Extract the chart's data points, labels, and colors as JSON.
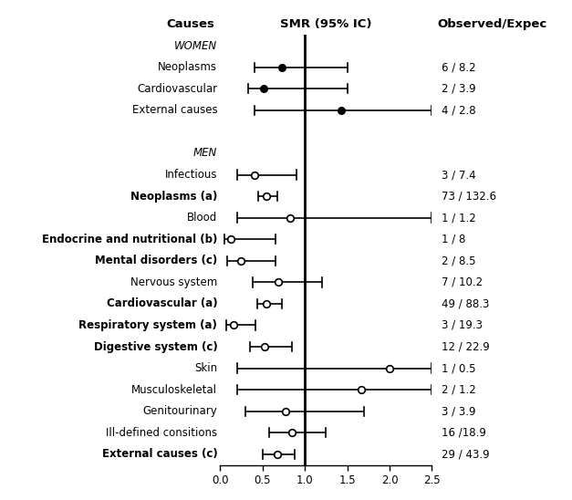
{
  "title_causes": "Causes",
  "title_smr": "SMR (95% IC)",
  "title_obs": "Observed/Expec",
  "xlim": [
    0.0,
    2.5
  ],
  "xticks": [
    0.0,
    0.5,
    1.0,
    1.5,
    2.0,
    2.5
  ],
  "xtick_labels": [
    "0.0",
    "0.5",
    "1.0",
    "1.5",
    "2.0",
    "2.5"
  ],
  "reference_line": 1.0,
  "rows": [
    {
      "label": "WOMEN",
      "italic": true,
      "bold": false,
      "is_header": true,
      "smr": null,
      "ci_lo": null,
      "ci_hi": null,
      "obs_exp": ""
    },
    {
      "label": "Neoplasms",
      "italic": false,
      "bold": false,
      "is_header": false,
      "smr": 0.73,
      "ci_lo": 0.4,
      "ci_hi": 1.5,
      "obs_exp": "6 / 8.2",
      "filled": true
    },
    {
      "label": "Cardiovascular",
      "italic": false,
      "bold": false,
      "is_header": false,
      "smr": 0.51,
      "ci_lo": 0.33,
      "ci_hi": 1.5,
      "obs_exp": "2 / 3.9",
      "filled": true
    },
    {
      "label": "External causes",
      "italic": false,
      "bold": false,
      "is_header": false,
      "smr": 1.43,
      "ci_lo": 0.4,
      "ci_hi": 2.5,
      "obs_exp": "4 / 2.8",
      "filled": true
    },
    {
      "label": "",
      "italic": false,
      "bold": false,
      "is_header": true,
      "smr": null,
      "ci_lo": null,
      "ci_hi": null,
      "obs_exp": ""
    },
    {
      "label": "MEN",
      "italic": true,
      "bold": false,
      "is_header": true,
      "smr": null,
      "ci_lo": null,
      "ci_hi": null,
      "obs_exp": ""
    },
    {
      "label": "Infectious",
      "italic": false,
      "bold": false,
      "is_header": false,
      "smr": 0.41,
      "ci_lo": 0.2,
      "ci_hi": 0.9,
      "obs_exp": "3 / 7.4",
      "filled": false
    },
    {
      "label": "Neoplasms (a)",
      "italic": false,
      "bold": true,
      "is_header": false,
      "smr": 0.55,
      "ci_lo": 0.45,
      "ci_hi": 0.68,
      "obs_exp": "73 / 132.6",
      "filled": false
    },
    {
      "label": "Blood",
      "italic": false,
      "bold": false,
      "is_header": false,
      "smr": 0.83,
      "ci_lo": 0.2,
      "ci_hi": 2.5,
      "obs_exp": "1 / 1.2",
      "filled": false
    },
    {
      "label": "Endocrine and nutritional (b)",
      "italic": false,
      "bold": true,
      "is_header": false,
      "smr": 0.13,
      "ci_lo": 0.05,
      "ci_hi": 0.65,
      "obs_exp": "1 / 8",
      "filled": false
    },
    {
      "label": "Mental disorders (c)",
      "italic": false,
      "bold": true,
      "is_header": false,
      "smr": 0.24,
      "ci_lo": 0.08,
      "ci_hi": 0.65,
      "obs_exp": "2 / 8.5",
      "filled": false
    },
    {
      "label": "Nervous system",
      "italic": false,
      "bold": false,
      "is_header": false,
      "smr": 0.69,
      "ci_lo": 0.38,
      "ci_hi": 1.2,
      "obs_exp": "7 / 10.2",
      "filled": false
    },
    {
      "label": "Cardiovascular (a)",
      "italic": false,
      "bold": true,
      "is_header": false,
      "smr": 0.55,
      "ci_lo": 0.44,
      "ci_hi": 0.73,
      "obs_exp": "49 / 88.3",
      "filled": false
    },
    {
      "label": "Respiratory system (a)",
      "italic": false,
      "bold": true,
      "is_header": false,
      "smr": 0.16,
      "ci_lo": 0.07,
      "ci_hi": 0.42,
      "obs_exp": "3 / 19.3",
      "filled": false
    },
    {
      "label": "Digestive system (c)",
      "italic": false,
      "bold": true,
      "is_header": false,
      "smr": 0.52,
      "ci_lo": 0.35,
      "ci_hi": 0.85,
      "obs_exp": "12 / 22.9",
      "filled": false
    },
    {
      "label": "Skin",
      "italic": false,
      "bold": false,
      "is_header": false,
      "smr": 2.0,
      "ci_lo": 0.2,
      "ci_hi": 2.5,
      "obs_exp": "1 / 0.5",
      "filled": false
    },
    {
      "label": "Musculoskeletal",
      "italic": false,
      "bold": false,
      "is_header": false,
      "smr": 1.67,
      "ci_lo": 0.2,
      "ci_hi": 2.5,
      "obs_exp": "2 / 1.2",
      "filled": false
    },
    {
      "label": "Genitourinary",
      "italic": false,
      "bold": false,
      "is_header": false,
      "smr": 0.77,
      "ci_lo": 0.3,
      "ci_hi": 1.7,
      "obs_exp": "3 / 3.9",
      "filled": false
    },
    {
      "label": "Ill-defined consitions",
      "italic": false,
      "bold": false,
      "is_header": false,
      "smr": 0.85,
      "ci_lo": 0.58,
      "ci_hi": 1.25,
      "obs_exp": "16 /18.9",
      "filled": false
    },
    {
      "label": "External causes (c)",
      "italic": false,
      "bold": true,
      "is_header": false,
      "smr": 0.67,
      "ci_lo": 0.5,
      "ci_hi": 0.88,
      "obs_exp": "29 / 43.9",
      "filled": false
    }
  ],
  "background_color": "#ffffff",
  "line_color": "#000000",
  "text_color": "#000000"
}
